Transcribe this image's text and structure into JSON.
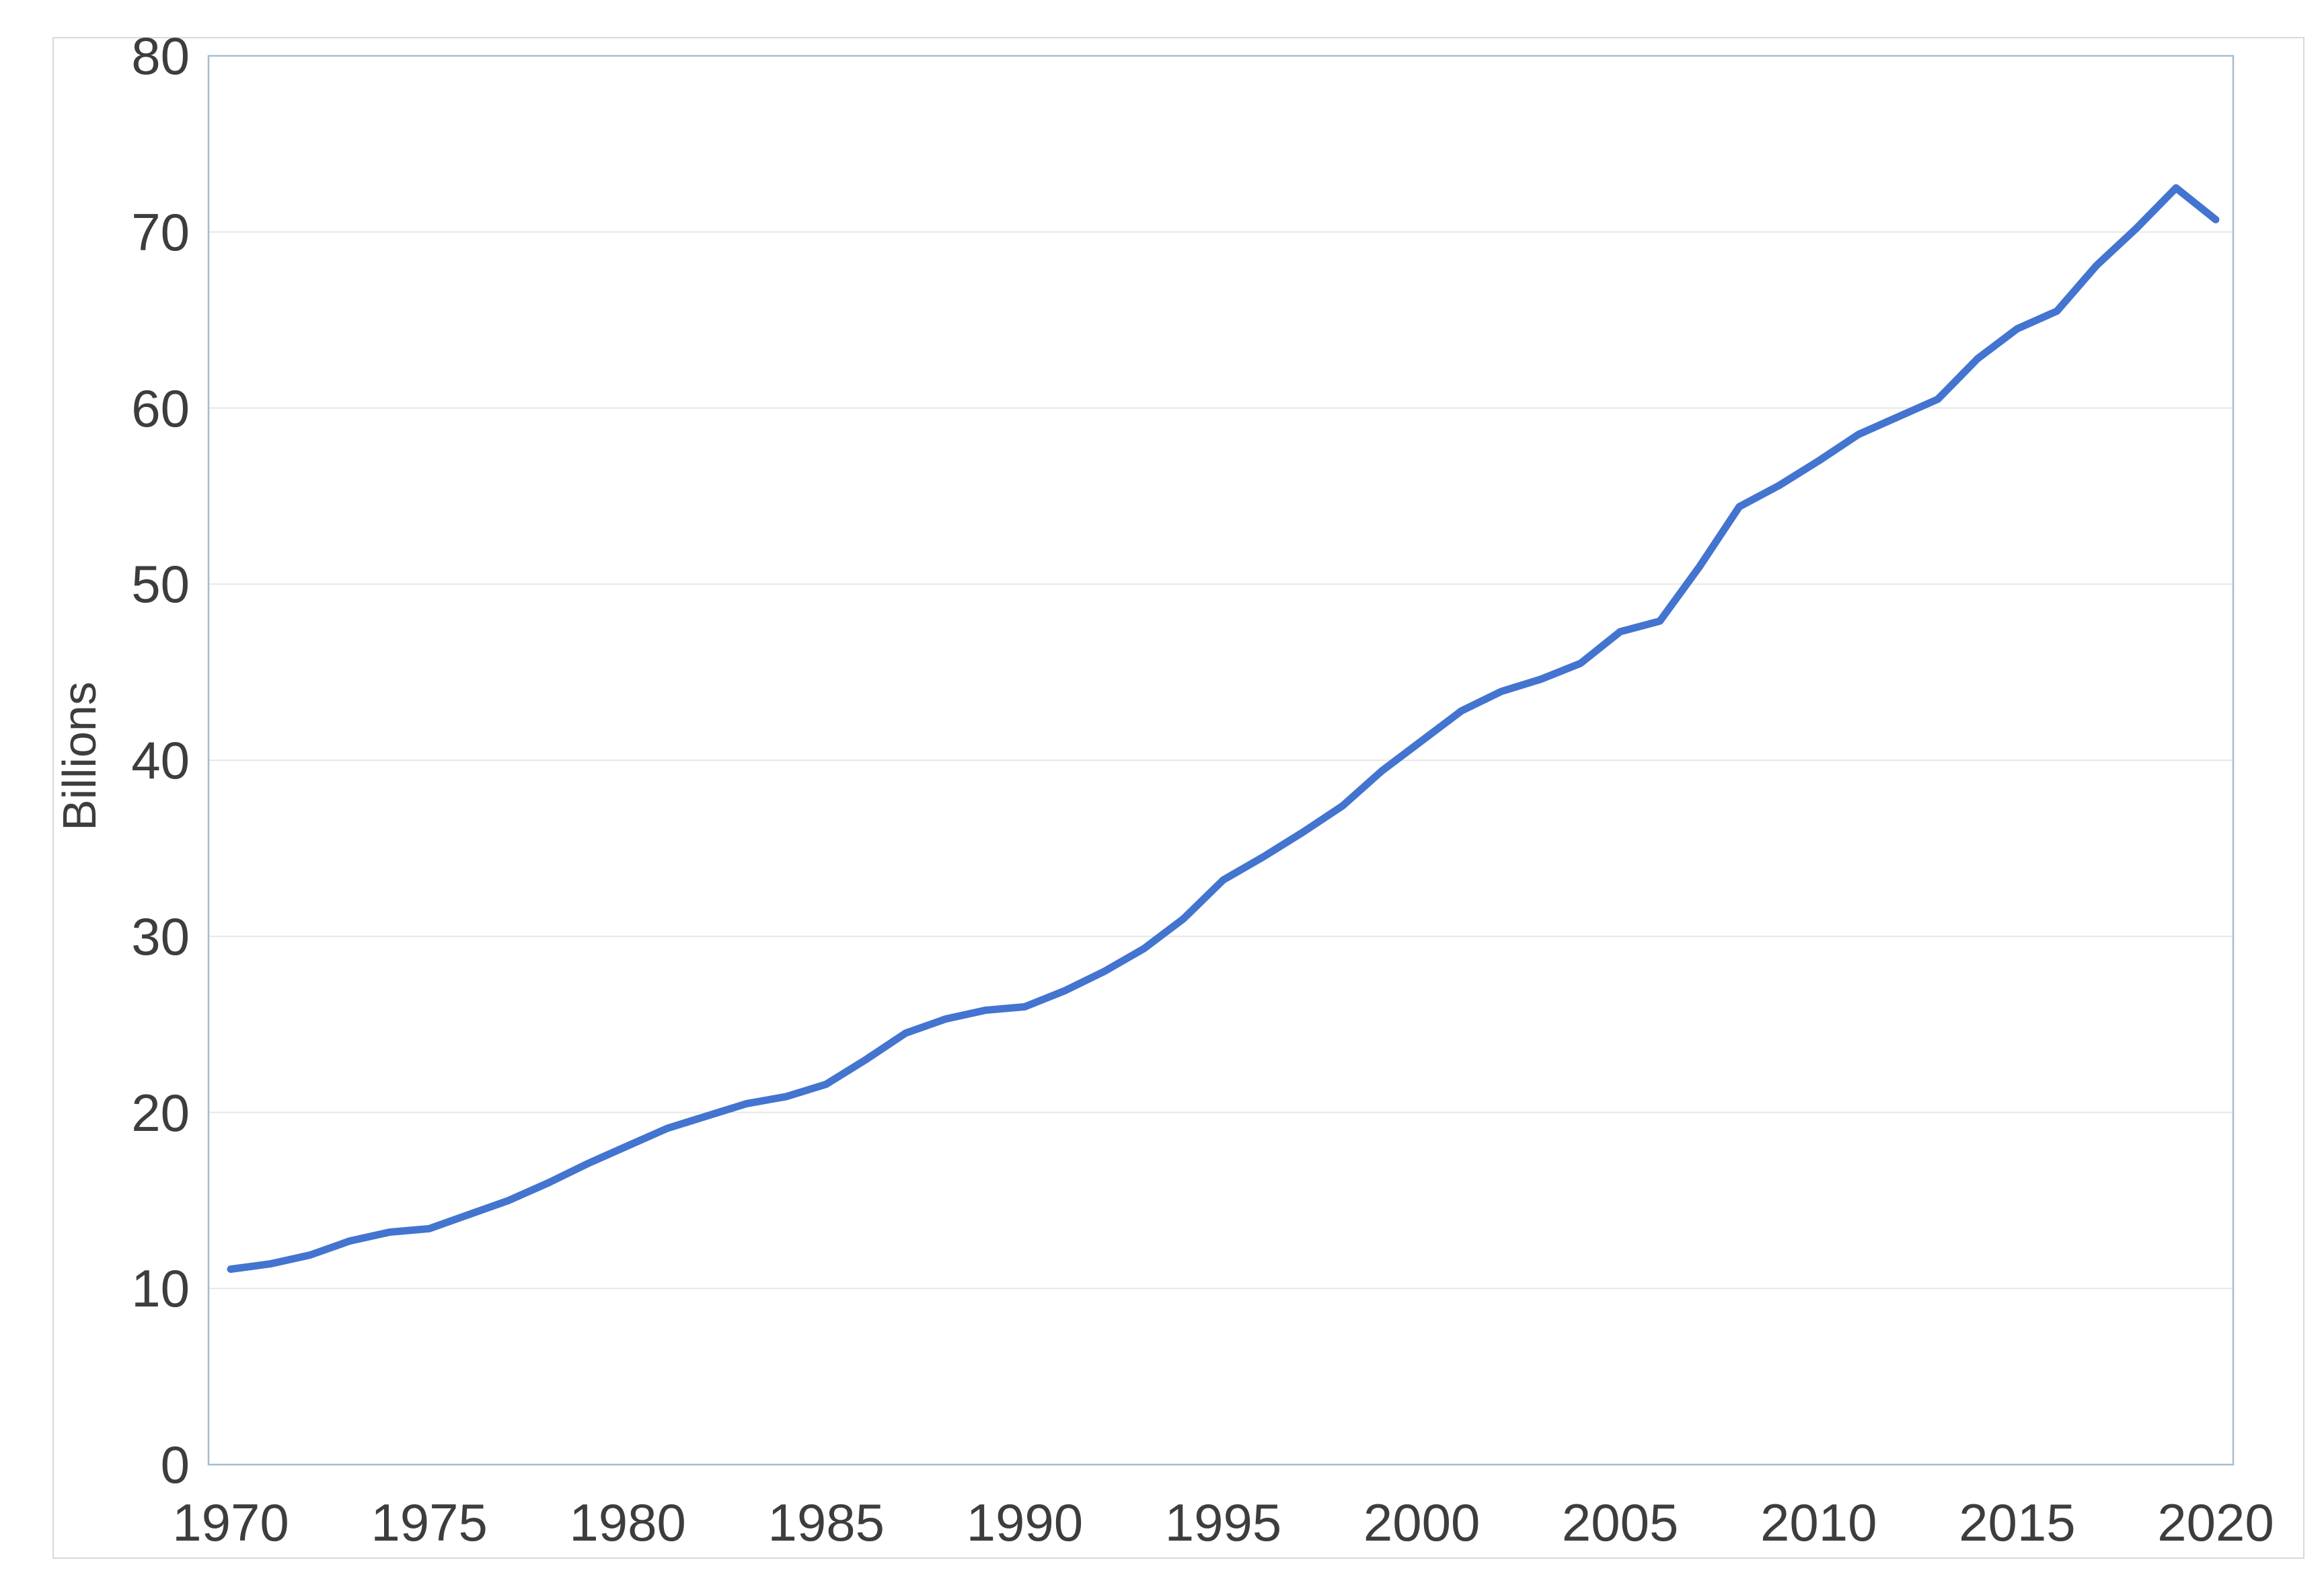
{
  "figure": {
    "background_color": "#ffffff",
    "outer_border_color": "#d9d9d9",
    "plot_border_color": "#a6bccf",
    "gridline_color": "#e7e7e7",
    "text_color": "#3d3d3d"
  },
  "chart_data": {
    "type": "line",
    "title": "",
    "xlabel": "",
    "ylabel": "Billions",
    "legend": "none",
    "grid": "horizontal",
    "line_color": "#4374d0",
    "ylim": [
      0,
      80
    ],
    "xlim": [
      1970,
      2020
    ],
    "yticks": [
      0,
      10,
      20,
      30,
      40,
      50,
      60,
      70,
      80
    ],
    "xticks": [
      1970,
      1975,
      1980,
      1985,
      1990,
      1995,
      2000,
      2005,
      2010,
      2015,
      2020
    ],
    "x": [
      1970,
      1971,
      1972,
      1973,
      1974,
      1975,
      1976,
      1977,
      1978,
      1979,
      1980,
      1981,
      1982,
      1983,
      1984,
      1985,
      1986,
      1987,
      1988,
      1989,
      1990,
      1991,
      1992,
      1993,
      1994,
      1995,
      1996,
      1997,
      1998,
      1999,
      2000,
      2001,
      2002,
      2003,
      2004,
      2005,
      2006,
      2007,
      2008,
      2009,
      2010,
      2011,
      2012,
      2013,
      2014,
      2015,
      2016,
      2017,
      2018,
      2019,
      2020
    ],
    "series": [
      {
        "name": "Billions",
        "values": [
          11.1,
          11.4,
          11.9,
          12.7,
          13.2,
          13.4,
          14.2,
          15.0,
          16.0,
          17.1,
          18.1,
          19.1,
          19.8,
          20.5,
          20.9,
          21.6,
          23.0,
          24.5,
          25.3,
          25.8,
          26.0,
          26.9,
          28.0,
          29.3,
          31.0,
          33.2,
          34.5,
          35.9,
          37.4,
          39.4,
          41.1,
          42.8,
          43.9,
          44.6,
          45.5,
          47.3,
          47.9,
          51.0,
          54.4,
          55.6,
          57.0,
          58.5,
          59.5,
          60.5,
          62.8,
          64.5,
          65.5,
          68.1,
          70.2,
          72.5,
          70.7
        ]
      }
    ]
  }
}
